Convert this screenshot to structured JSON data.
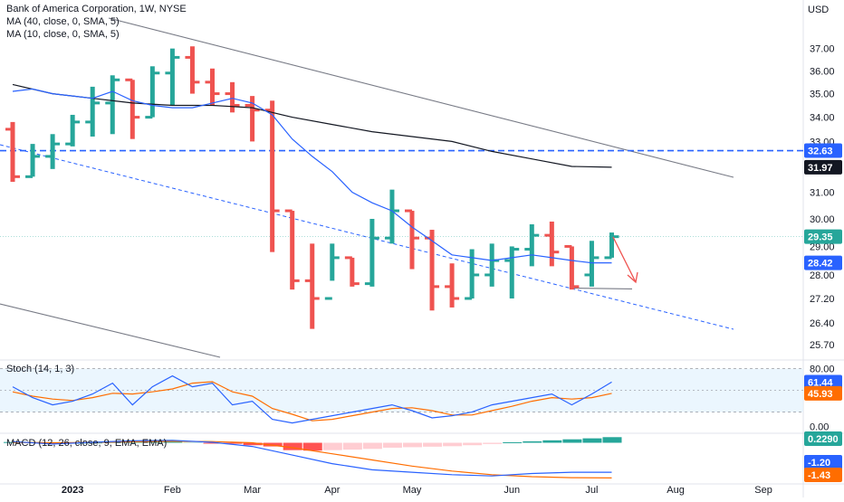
{
  "legend": {
    "title": "Bank of America Corporation, 1W, NYSE",
    "ma40": "MA (40, close, 0, SMA, 5)",
    "ma10": "MA (10, close, 0, SMA, 5)",
    "stoch": "Stoch (14, 1, 3)",
    "macd": "MACD (12, 26, close, 9, EMA, EMA)"
  },
  "currency": "USD",
  "colors": {
    "up": "#26a69a",
    "down": "#ef5350",
    "ma10": "#2962ff",
    "ma40": "#131722",
    "channel": "#787b86",
    "hline": "#2962ff",
    "stoch_k": "#2962ff",
    "stoch_d": "#ff6d00",
    "macd": "#2962ff",
    "signal": "#ff6d00",
    "hist_up_strong": "#26a69a",
    "hist_up_weak": "#b2dfdb",
    "hist_down_strong": "#ff5252",
    "hist_down_weak": "#ffcdd2",
    "arrow": "#ef5350"
  },
  "price_tags": [
    {
      "label": "32.63",
      "value": 32.63,
      "color": "#2962ff"
    },
    {
      "label": "31.97",
      "value": 31.97,
      "color": "#131722"
    },
    {
      "label": "29.35",
      "value": 29.35,
      "color": "#26a69a"
    },
    {
      "label": "28.42",
      "value": 28.42,
      "color": "#2962ff"
    }
  ],
  "stoch_tags": [
    {
      "label": "61.44",
      "value": 61.44,
      "color": "#2962ff"
    },
    {
      "label": "45.93",
      "value": 45.93,
      "color": "#ff6d00"
    }
  ],
  "macd_tags": [
    {
      "label": "0.2290",
      "value": 0.229,
      "color": "#26a69a"
    },
    {
      "label": "-1.20",
      "value": -1.2,
      "color": "#2962ff"
    },
    {
      "label": "-1.43",
      "value": -1.43,
      "color": "#ff6d00"
    }
  ],
  "chart_data": {
    "type": "candlestick",
    "price_axis": {
      "ticks": [
        "37.00",
        "36.00",
        "35.00",
        "34.00",
        "33.00",
        "31.00",
        "30.00",
        "29.00",
        "28.00",
        "27.20",
        "26.40",
        "25.70"
      ],
      "scale": "log",
      "range": [
        25.3,
        38.2
      ]
    },
    "stoch_axis": {
      "ticks": [
        "80.00",
        "0.00"
      ],
      "range": [
        -8,
        92
      ],
      "band": [
        20,
        80
      ]
    },
    "macd_axis": {
      "range": [
        -1.6,
        0.35
      ]
    },
    "x_labels": [
      {
        "label": "2023",
        "week": 3
      },
      {
        "label": "Feb",
        "week": 8
      },
      {
        "label": "Mar",
        "week": 12
      },
      {
        "label": "Apr",
        "week": 16
      },
      {
        "label": "May",
        "week": 20
      },
      {
        "label": "Jun",
        "week": 25
      },
      {
        "label": "Jul",
        "week": 29
      },
      {
        "label": "Aug",
        "week": 33.2
      },
      {
        "label": "Sep",
        "week": 37.6
      }
    ],
    "bars": [
      {
        "w": 0,
        "o": 33.5,
        "h": 33.8,
        "l": 31.4,
        "c": 31.6
      },
      {
        "w": 1,
        "o": 31.6,
        "h": 32.9,
        "l": 31.6,
        "c": 32.4
      },
      {
        "w": 2,
        "o": 32.4,
        "h": 33.3,
        "l": 31.9,
        "c": 32.9
      },
      {
        "w": 3,
        "o": 32.9,
        "h": 34.1,
        "l": 32.8,
        "c": 33.8
      },
      {
        "w": 4,
        "o": 33.8,
        "h": 35.3,
        "l": 33.2,
        "c": 34.6
      },
      {
        "w": 5,
        "o": 34.6,
        "h": 35.8,
        "l": 33.3,
        "c": 35.6
      },
      {
        "w": 6,
        "o": 35.6,
        "h": 35.6,
        "l": 33.1,
        "c": 34.0
      },
      {
        "w": 7,
        "o": 34.0,
        "h": 36.2,
        "l": 34.0,
        "c": 35.9
      },
      {
        "w": 8,
        "o": 35.9,
        "h": 37.0,
        "l": 34.5,
        "c": 36.6
      },
      {
        "w": 9,
        "o": 36.6,
        "h": 37.1,
        "l": 35.0,
        "c": 35.5
      },
      {
        "w": 10,
        "o": 35.5,
        "h": 36.1,
        "l": 34.5,
        "c": 35.0
      },
      {
        "w": 11,
        "o": 35.0,
        "h": 35.5,
        "l": 34.2,
        "c": 34.5
      },
      {
        "w": 12,
        "o": 34.5,
        "h": 34.9,
        "l": 33.0,
        "c": 34.3
      },
      {
        "w": 13,
        "o": 34.3,
        "h": 34.7,
        "l": 28.8,
        "c": 30.3
      },
      {
        "w": 14,
        "o": 30.3,
        "h": 30.3,
        "l": 27.5,
        "c": 27.8
      },
      {
        "w": 15,
        "o": 27.8,
        "h": 29.1,
        "l": 26.2,
        "c": 27.2
      },
      {
        "w": 16,
        "o": 27.2,
        "h": 29.1,
        "l": 27.8,
        "c": 28.6
      },
      {
        "w": 17,
        "o": 28.6,
        "h": 28.6,
        "l": 27.6,
        "c": 27.7
      },
      {
        "w": 18,
        "o": 27.7,
        "h": 30.0,
        "l": 27.6,
        "c": 29.3
      },
      {
        "w": 19,
        "o": 29.3,
        "h": 31.1,
        "l": 29.1,
        "c": 30.3
      },
      {
        "w": 20,
        "o": 30.3,
        "h": 30.3,
        "l": 28.2,
        "c": 29.3
      },
      {
        "w": 21,
        "o": 29.3,
        "h": 29.6,
        "l": 26.8,
        "c": 27.6
      },
      {
        "w": 22,
        "o": 27.6,
        "h": 28.4,
        "l": 26.9,
        "c": 27.2
      },
      {
        "w": 23,
        "o": 27.2,
        "h": 28.9,
        "l": 27.2,
        "c": 28.0
      },
      {
        "w": 24,
        "o": 28.0,
        "h": 29.1,
        "l": 27.6,
        "c": 28.5
      },
      {
        "w": 25,
        "o": 28.5,
        "h": 29.0,
        "l": 27.2,
        "c": 28.9
      },
      {
        "w": 26,
        "o": 28.9,
        "h": 29.8,
        "l": 28.3,
        "c": 29.4
      },
      {
        "w": 27,
        "o": 29.4,
        "h": 29.9,
        "l": 28.3,
        "c": 28.8
      },
      {
        "w": 28,
        "o": 29.0,
        "h": 29.0,
        "l": 27.5,
        "c": 27.6
      },
      {
        "w": 29,
        "o": 28.0,
        "h": 29.2,
        "l": 27.6,
        "c": 28.6
      },
      {
        "w": 30,
        "o": 28.6,
        "h": 29.5,
        "l": 28.6,
        "c": 29.35
      }
    ],
    "ma10": [
      [
        0,
        35.1
      ],
      [
        1,
        35.2
      ],
      [
        2,
        35.0
      ],
      [
        3,
        34.9
      ],
      [
        4,
        34.8
      ],
      [
        5,
        35.1
      ],
      [
        6,
        34.7
      ],
      [
        7,
        34.5
      ],
      [
        8,
        34.4
      ],
      [
        9,
        34.4
      ],
      [
        10,
        34.6
      ],
      [
        11,
        34.8
      ],
      [
        12,
        34.6
      ],
      [
        13,
        34.1
      ],
      [
        14,
        33.1
      ],
      [
        15,
        32.4
      ],
      [
        16,
        31.8
      ],
      [
        17,
        31.0
      ],
      [
        18,
        30.6
      ],
      [
        19,
        30.3
      ],
      [
        20,
        29.7
      ],
      [
        21,
        29.2
      ],
      [
        22,
        28.7
      ],
      [
        23,
        28.6
      ],
      [
        24,
        28.5
      ],
      [
        25,
        28.6
      ],
      [
        26,
        28.7
      ],
      [
        27,
        28.6
      ],
      [
        28,
        28.5
      ],
      [
        29,
        28.42
      ],
      [
        30,
        28.42
      ]
    ],
    "ma40": [
      [
        0,
        35.4
      ],
      [
        2,
        35.0
      ],
      [
        4,
        34.8
      ],
      [
        6,
        34.6
      ],
      [
        8,
        34.5
      ],
      [
        10,
        34.5
      ],
      [
        12,
        34.4
      ],
      [
        14,
        34.0
      ],
      [
        16,
        33.7
      ],
      [
        18,
        33.4
      ],
      [
        20,
        33.2
      ],
      [
        22,
        33.0
      ],
      [
        24,
        32.6
      ],
      [
        26,
        32.3
      ],
      [
        28,
        32.0
      ],
      [
        30,
        31.97
      ]
    ],
    "resistance_line": {
      "value": 32.63
    },
    "stoch": {
      "k": [
        [
          0,
          55
        ],
        [
          1,
          40
        ],
        [
          2,
          30
        ],
        [
          3,
          35
        ],
        [
          4,
          45
        ],
        [
          5,
          60
        ],
        [
          6,
          30
        ],
        [
          7,
          55
        ],
        [
          8,
          70
        ],
        [
          9,
          55
        ],
        [
          10,
          60
        ],
        [
          11,
          30
        ],
        [
          12,
          35
        ],
        [
          13,
          10
        ],
        [
          14,
          5
        ],
        [
          15,
          10
        ],
        [
          16,
          15
        ],
        [
          17,
          20
        ],
        [
          18,
          25
        ],
        [
          19,
          30
        ],
        [
          20,
          22
        ],
        [
          21,
          12
        ],
        [
          22,
          15
        ],
        [
          23,
          20
        ],
        [
          24,
          30
        ],
        [
          25,
          35
        ],
        [
          26,
          40
        ],
        [
          27,
          45
        ],
        [
          28,
          30
        ],
        [
          29,
          45
        ],
        [
          30,
          61.44
        ]
      ],
      "d": [
        [
          0,
          48
        ],
        [
          1,
          42
        ],
        [
          2,
          38
        ],
        [
          3,
          36
        ],
        [
          4,
          40
        ],
        [
          5,
          46
        ],
        [
          6,
          45
        ],
        [
          7,
          48
        ],
        [
          8,
          52
        ],
        [
          9,
          60
        ],
        [
          10,
          62
        ],
        [
          11,
          48
        ],
        [
          12,
          42
        ],
        [
          13,
          25
        ],
        [
          14,
          17
        ],
        [
          15,
          8
        ],
        [
          16,
          10
        ],
        [
          17,
          15
        ],
        [
          18,
          20
        ],
        [
          19,
          25
        ],
        [
          20,
          26
        ],
        [
          21,
          22
        ],
        [
          22,
          16
        ],
        [
          23,
          16
        ],
        [
          24,
          22
        ],
        [
          25,
          28
        ],
        [
          26,
          35
        ],
        [
          27,
          40
        ],
        [
          28,
          38
        ],
        [
          29,
          40
        ],
        [
          30,
          45.93
        ]
      ]
    },
    "macd": {
      "macd": [
        [
          0,
          0.05
        ],
        [
          2,
          -0.05
        ],
        [
          4,
          0.02
        ],
        [
          6,
          0.08
        ],
        [
          8,
          0.1
        ],
        [
          10,
          0.02
        ],
        [
          12,
          -0.15
        ],
        [
          14,
          -0.5
        ],
        [
          16,
          -0.85
        ],
        [
          18,
          -1.1
        ],
        [
          20,
          -1.2
        ],
        [
          22,
          -1.3
        ],
        [
          24,
          -1.35
        ],
        [
          26,
          -1.25
        ],
        [
          28,
          -1.2
        ],
        [
          30,
          -1.2
        ]
      ],
      "signal": [
        [
          0,
          0.02
        ],
        [
          2,
          0.0
        ],
        [
          4,
          0.01
        ],
        [
          6,
          0.04
        ],
        [
          8,
          0.06
        ],
        [
          10,
          0.05
        ],
        [
          12,
          0.0
        ],
        [
          14,
          -0.2
        ],
        [
          16,
          -0.45
        ],
        [
          18,
          -0.7
        ],
        [
          20,
          -0.95
        ],
        [
          22,
          -1.15
        ],
        [
          24,
          -1.3
        ],
        [
          26,
          -1.38
        ],
        [
          28,
          -1.42
        ],
        [
          30,
          -1.43
        ]
      ],
      "hist": [
        [
          0,
          0.03
        ],
        [
          1,
          0.02
        ],
        [
          2,
          -0.03
        ],
        [
          3,
          0.0
        ],
        [
          4,
          0.01
        ],
        [
          5,
          0.03
        ],
        [
          6,
          0.04
        ],
        [
          7,
          0.05
        ],
        [
          8,
          0.05
        ],
        [
          9,
          0.03
        ],
        [
          10,
          -0.02
        ],
        [
          11,
          -0.04
        ],
        [
          12,
          -0.1
        ],
        [
          13,
          -0.15
        ],
        [
          14,
          -0.3
        ],
        [
          15,
          -0.32
        ],
        [
          16,
          -0.3
        ],
        [
          17,
          -0.28
        ],
        [
          18,
          -0.25
        ],
        [
          19,
          -0.2
        ],
        [
          20,
          -0.18
        ],
        [
          21,
          -0.16
        ],
        [
          22,
          -0.14
        ],
        [
          23,
          -0.1
        ],
        [
          24,
          -0.05
        ],
        [
          25,
          0.02
        ],
        [
          26,
          0.06
        ],
        [
          27,
          0.1
        ],
        [
          28,
          0.14
        ],
        [
          29,
          0.18
        ],
        [
          30,
          0.229
        ]
      ]
    }
  }
}
